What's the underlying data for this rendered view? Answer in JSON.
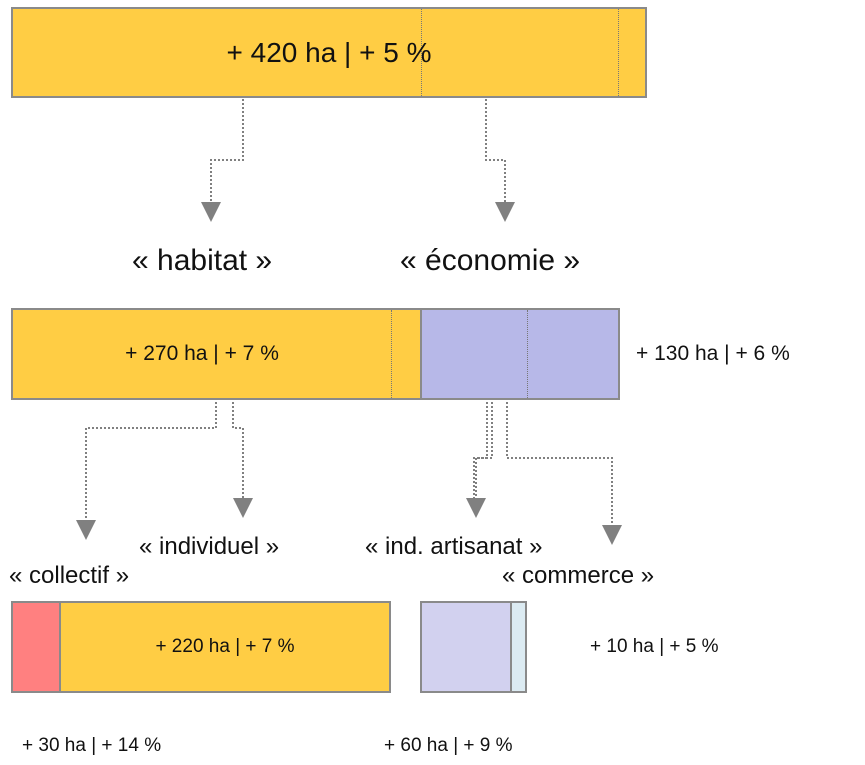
{
  "top_bar": {
    "label": "+ 420 ha | + 5 %"
  },
  "categories": {
    "habitat": "« habitat »",
    "economie": "« économie »"
  },
  "mid_bar": {
    "habitat_label": "+ 270 ha | + 7 %",
    "economie_label": "+ 130 ha | + 6 %"
  },
  "sub_categories": {
    "individuel": "« individuel »",
    "collectif": "« collectif »",
    "ind_artisanat": "« ind. artisanat »",
    "commerce": "« commerce »"
  },
  "bottom": {
    "individuel_label": "+ 220 ha | + 7 %",
    "collectif_label": "+ 30 ha | + 14 %",
    "ind_artisanat_label": "+ 60 ha | + 9 %",
    "commerce_label": "+ 10 ha | + 5 %"
  },
  "colors": {
    "habitat": "#ffcd44",
    "economie": "#b7b8e8",
    "collectif": "#ff8080",
    "ind_artisanat": "#d2d1ef",
    "commerce": "#dcebf2",
    "border": "#8a8a8a",
    "arrow": "#808080"
  }
}
